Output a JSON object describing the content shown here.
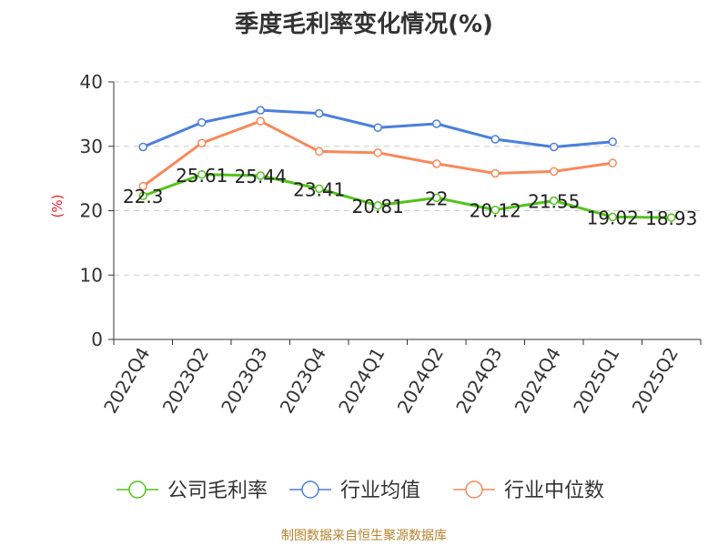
{
  "chart_data": {
    "type": "line",
    "title": "季度毛利率变化情况(%)",
    "ylabel": "(%)",
    "xlabel": "",
    "categories": [
      "2022Q4",
      "2023Q2",
      "2023Q3",
      "2023Q4",
      "2024Q1",
      "2024Q2",
      "2024Q3",
      "2024Q4",
      "2025Q1",
      "2025Q2"
    ],
    "ylim": [
      0,
      40
    ],
    "yticks": [
      0,
      10,
      20,
      30,
      40
    ],
    "grid": true,
    "legend_position": "bottom",
    "series": [
      {
        "name": "公司毛利率",
        "color": "#52c41a",
        "values": [
          22.3,
          25.61,
          25.44,
          23.41,
          20.81,
          22,
          20.12,
          21.55,
          19.02,
          18.93
        ],
        "labels": [
          "22.3",
          "25.61",
          "25.44",
          "23.41",
          "20.81",
          "22",
          "20.12",
          "21.55",
          "19.02",
          "18.93"
        ]
      },
      {
        "name": "行业均值",
        "color": "#4a7fdc",
        "values": [
          29.9,
          33.7,
          35.6,
          35.1,
          32.9,
          33.5,
          31.1,
          29.9,
          30.7,
          null
        ]
      },
      {
        "name": "行业中位数",
        "color": "#f7895a",
        "values": [
          23.8,
          30.5,
          33.9,
          29.2,
          29.0,
          27.3,
          25.8,
          26.1,
          27.4,
          null
        ]
      }
    ]
  },
  "footer": {
    "source": "制图数据来自恒生聚源数据库"
  }
}
